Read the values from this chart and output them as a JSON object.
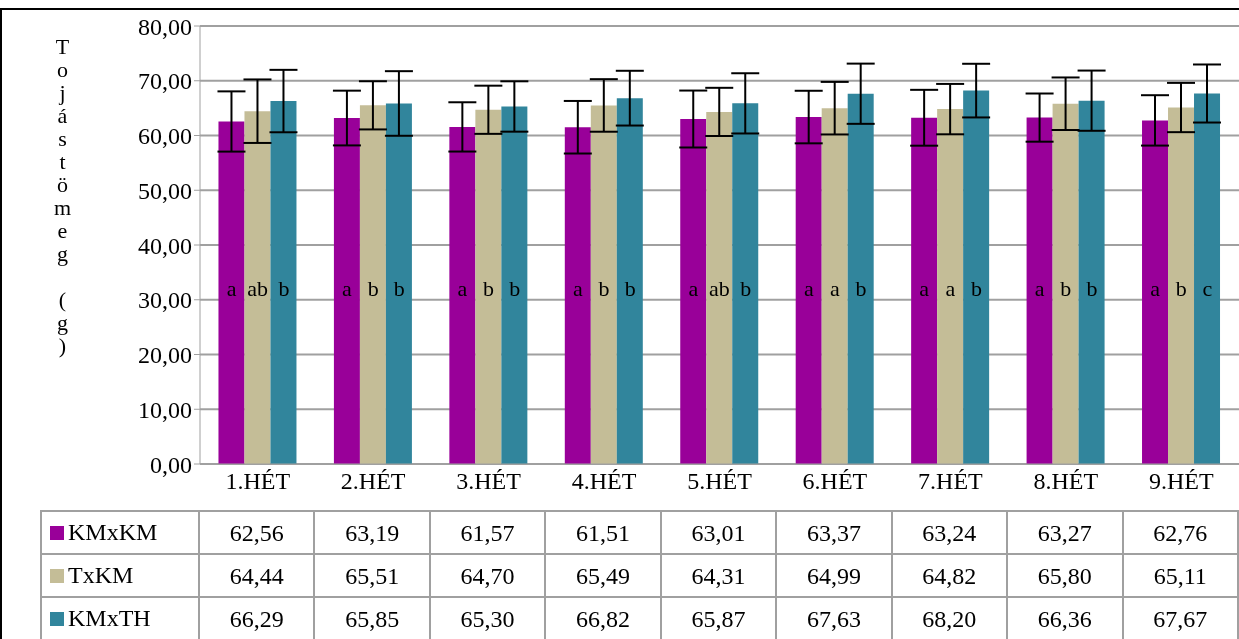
{
  "chart_data": {
    "type": "bar",
    "ylabel": "Tojástömeg (g)",
    "categories": [
      "1.HÉT",
      "2.HÉT",
      "3.HÉT",
      "4.HÉT",
      "5.HÉT",
      "6.HÉT",
      "7.HÉT",
      "8.HÉT",
      "9.HÉT"
    ],
    "series": [
      {
        "name": "KMxKM",
        "color": "#990099",
        "values": [
          62.56,
          63.19,
          61.57,
          61.51,
          63.01,
          63.37,
          63.24,
          63.27,
          62.76
        ],
        "value_labels": [
          "62,56",
          "63,19",
          "61,57",
          "61,51",
          "63,01",
          "63,37",
          "63,24",
          "63,27",
          "62,76"
        ],
        "errors": [
          5.5,
          5.0,
          4.5,
          4.8,
          5.2,
          4.8,
          5.1,
          4.4,
          4.6
        ]
      },
      {
        "name": "TxKM",
        "color": "#c4bd97",
        "values": [
          64.44,
          65.51,
          64.7,
          65.49,
          64.31,
          64.99,
          64.82,
          65.8,
          65.11
        ],
        "value_labels": [
          "64,44",
          "65,51",
          "64,70",
          "65,49",
          "64,31",
          "64,99",
          "64,82",
          "65,80",
          "65,11"
        ],
        "errors": [
          5.8,
          4.4,
          4.4,
          4.8,
          4.4,
          4.8,
          4.6,
          4.8,
          4.5
        ]
      },
      {
        "name": "KMxTH",
        "color": "#31859c",
        "values": [
          66.29,
          65.85,
          65.3,
          66.82,
          65.87,
          67.63,
          68.2,
          66.36,
          67.67
        ],
        "value_labels": [
          "66,29",
          "65,85",
          "65,30",
          "66,82",
          "65,87",
          "67,63",
          "68,20",
          "66,36",
          "67,67"
        ],
        "errors": [
          5.7,
          5.9,
          4.6,
          5.0,
          5.5,
          5.5,
          4.9,
          5.5,
          5.3
        ]
      }
    ],
    "ylim": [
      0,
      80
    ],
    "yticks": [
      {
        "value": 0,
        "label": "0,00"
      },
      {
        "value": 10,
        "label": "10,00"
      },
      {
        "value": 20,
        "label": "20,00"
      },
      {
        "value": 30,
        "label": "30,00"
      },
      {
        "value": 40,
        "label": "40,00"
      },
      {
        "value": 50,
        "label": "50,00"
      },
      {
        "value": 60,
        "label": "60,00"
      },
      {
        "value": 70,
        "label": "70,00"
      },
      {
        "value": 80,
        "label": "80,00"
      }
    ],
    "grid": "y",
    "legend": "bottom",
    "annotations": [
      "a",
      "ab",
      "b",
      "a",
      "b",
      "b",
      "a",
      "b",
      "b",
      "a",
      "b",
      "b",
      "a",
      "ab",
      "b",
      "a",
      "a",
      "b",
      "a",
      "a",
      "b",
      "a",
      "b",
      "b",
      "a",
      "b",
      "c"
    ]
  }
}
